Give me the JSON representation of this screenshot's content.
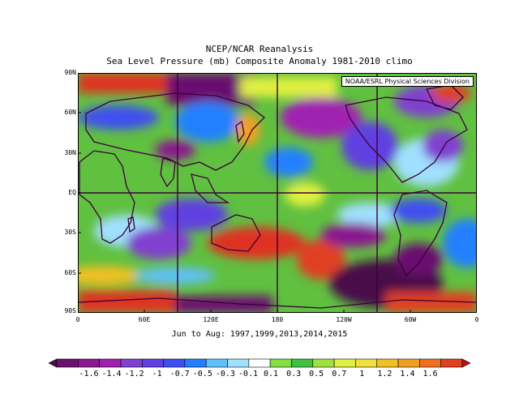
{
  "header": {
    "title": "NCEP/NCAR Reanalysis",
    "subtitle": "Sea Level Pressure (mb) Composite Anomaly 1981-2010 climo"
  },
  "credit": "NOAA/ESRL Physical Sciences Division",
  "footer": {
    "period": "Jun to Aug: 1997,1999,2013,2014,2015"
  },
  "axes": {
    "lat_labels": [
      "90N",
      "60N",
      "30N",
      "EQ",
      "30S",
      "60S",
      "90S"
    ],
    "lon_labels": [
      "0",
      "60E",
      "120E",
      "180",
      "120W",
      "60W",
      "0"
    ]
  },
  "colorbar": {
    "labels": [
      "-1.6",
      "-1.4",
      "-1.2",
      "-1",
      "-0.7",
      "-0.5",
      "-0.3",
      "-0.1",
      "0.1",
      "0.3",
      "0.5",
      "0.7",
      "1",
      "1.2",
      "1.4",
      "1.6"
    ],
    "colors": [
      "#4a0a4a",
      "#6a1070",
      "#8a1890",
      "#a020b0",
      "#8040d0",
      "#6040e0",
      "#4050f0",
      "#2080ff",
      "#60c0ff",
      "#a0e0ff",
      "#ffffff",
      "#80e040",
      "#40c040",
      "#a0e040",
      "#e0f040",
      "#f0e040",
      "#f0c020",
      "#f0a020",
      "#f07020",
      "#e04020",
      "#c01010"
    ]
  },
  "colors": {
    "land_outline": "#3a003a",
    "grid_line": "#3a003a"
  }
}
